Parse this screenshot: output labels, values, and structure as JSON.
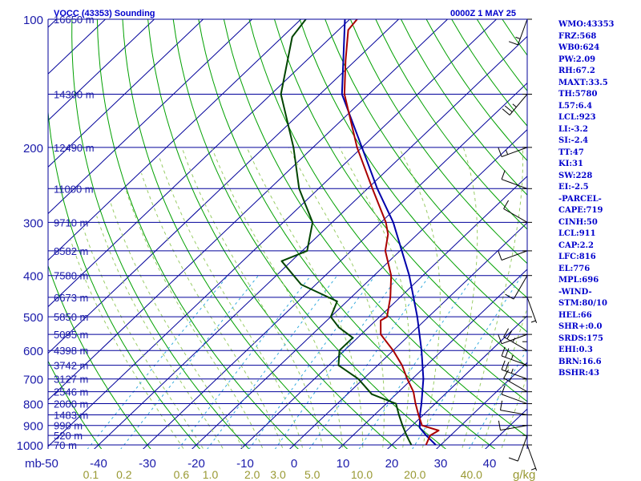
{
  "chart_data": {
    "type": "line",
    "title": "VOCC (43353) Sounding",
    "time_label": "0000Z  1 MAY 25",
    "pressure_unit": "mb",
    "mixing_ratio_unit": "g/kg",
    "pressure_ticks": [
      {
        "label": "100",
        "p": 100
      },
      {
        "label": "200",
        "p": 200
      },
      {
        "label": "300",
        "p": 300
      },
      {
        "label": "400",
        "p": 400
      },
      {
        "label": "500",
        "p": 500
      },
      {
        "label": "600",
        "p": 600
      },
      {
        "label": "700",
        "p": 700
      },
      {
        "label": "800",
        "p": 800
      },
      {
        "label": "900",
        "p": 900
      },
      {
        "label": "1000",
        "p": 1000
      }
    ],
    "height_levels": [
      {
        "label": "16650 m",
        "p": 100
      },
      {
        "label": "14300 m",
        "p": 150
      },
      {
        "label": "12490 m",
        "p": 200
      },
      {
        "label": "11000 m",
        "p": 250
      },
      {
        "label": "9710 m",
        "p": 300
      },
      {
        "label": "8582 m",
        "p": 350
      },
      {
        "label": "7580 m",
        "p": 400
      },
      {
        "label": "6673 m",
        "p": 450
      },
      {
        "label": "5850 m",
        "p": 500
      },
      {
        "label": "5095 m",
        "p": 550
      },
      {
        "label": "4398 m",
        "p": 600
      },
      {
        "label": "3742 m",
        "p": 650
      },
      {
        "label": "3127 m",
        "p": 700
      },
      {
        "label": "2546 m",
        "p": 750
      },
      {
        "label": "2000 m",
        "p": 800
      },
      {
        "label": "1483 m",
        "p": 850
      },
      {
        "label": "990 m",
        "p": 900
      },
      {
        "label": "520 m",
        "p": 950
      },
      {
        "label": "70 m",
        "p": 1000
      }
    ],
    "temperature_ticks": [
      {
        "label": "-50",
        "t": -50
      },
      {
        "label": "-40",
        "t": -40
      },
      {
        "label": "-30",
        "t": -30
      },
      {
        "label": "-20",
        "t": -20
      },
      {
        "label": "-10",
        "t": -10
      },
      {
        "label": "0",
        "t": 0
      },
      {
        "label": "10",
        "t": 10
      },
      {
        "label": "20",
        "t": 20
      },
      {
        "label": "30",
        "t": 30
      },
      {
        "label": "40",
        "t": 40
      }
    ],
    "mixing_ratio_ticks": [
      {
        "label": "0.1",
        "w": 0.1
      },
      {
        "label": "0.2",
        "w": 0.2
      },
      {
        "label": "0.6",
        "w": 0.6
      },
      {
        "label": "1.0",
        "w": 1.0
      },
      {
        "label": "2.0",
        "w": 2.0
      },
      {
        "label": "3.0",
        "w": 3.0
      },
      {
        "label": "5.0",
        "w": 5.0
      },
      {
        "label": "10.0",
        "w": 10.0
      },
      {
        "label": "20.0",
        "w": 20.0
      },
      {
        "label": "40.0",
        "w": 40.0
      }
    ],
    "temperature_profile": [
      {
        "p": 1000,
        "t": 27.0
      },
      {
        "p": 950,
        "t": 25.8
      },
      {
        "p": 925,
        "t": 26.5
      },
      {
        "p": 900,
        "t": 22.0
      },
      {
        "p": 850,
        "t": 19.0
      },
      {
        "p": 800,
        "t": 16.0
      },
      {
        "p": 750,
        "t": 13.0
      },
      {
        "p": 700,
        "t": 9.0
      },
      {
        "p": 650,
        "t": 5.0
      },
      {
        "p": 600,
        "t": 0.0
      },
      {
        "p": 550,
        "t": -6.0
      },
      {
        "p": 510,
        "t": -9.0
      },
      {
        "p": 500,
        "t": -8.5
      },
      {
        "p": 450,
        "t": -12.0
      },
      {
        "p": 400,
        "t": -16.5
      },
      {
        "p": 350,
        "t": -23.0
      },
      {
        "p": 320,
        "t": -26.0
      },
      {
        "p": 300,
        "t": -29.0
      },
      {
        "p": 250,
        "t": -39.0
      },
      {
        "p": 200,
        "t": -51.0
      },
      {
        "p": 150,
        "t": -65.0
      },
      {
        "p": 125,
        "t": -72.0
      },
      {
        "p": 106,
        "t": -78.0
      },
      {
        "p": 100,
        "t": -78.5
      }
    ],
    "dewpoint_profile": [
      {
        "p": 1000,
        "t": 24.0
      },
      {
        "p": 975,
        "t": 22.5
      },
      {
        "p": 950,
        "t": 21.0
      },
      {
        "p": 900,
        "t": 18.0
      },
      {
        "p": 850,
        "t": 15.0
      },
      {
        "p": 800,
        "t": 12.0
      },
      {
        "p": 760,
        "t": 5.0
      },
      {
        "p": 700,
        "t": -1.0
      },
      {
        "p": 650,
        "t": -8.0
      },
      {
        "p": 600,
        "t": -11.0
      },
      {
        "p": 560,
        "t": -11.0
      },
      {
        "p": 530,
        "t": -16.0
      },
      {
        "p": 500,
        "t": -20.0
      },
      {
        "p": 460,
        "t": -22.0
      },
      {
        "p": 420,
        "t": -33.0
      },
      {
        "p": 370,
        "t": -42.0
      },
      {
        "p": 350,
        "t": -39.0
      },
      {
        "p": 300,
        "t": -44.0
      },
      {
        "p": 250,
        "t": -54.0
      },
      {
        "p": 200,
        "t": -64.0
      },
      {
        "p": 150,
        "t": -78.0
      },
      {
        "p": 110,
        "t": -88.0
      },
      {
        "p": 100,
        "t": -89.0
      }
    ],
    "parcel_profile": [
      {
        "p": 1000,
        "t": 29.0
      },
      {
        "p": 950,
        "t": 25.0
      },
      {
        "p": 911,
        "t": 22.0
      },
      {
        "p": 850,
        "t": 19.3
      },
      {
        "p": 800,
        "t": 17.2
      },
      {
        "p": 700,
        "t": 12.3
      },
      {
        "p": 600,
        "t": 5.8
      },
      {
        "p": 500,
        "t": -2.3
      },
      {
        "p": 400,
        "t": -12.8
      },
      {
        "p": 300,
        "t": -27.5
      },
      {
        "p": 250,
        "t": -38.0
      },
      {
        "p": 200,
        "t": -50.0
      },
      {
        "p": 150,
        "t": -65.5
      },
      {
        "p": 100,
        "t": -81.0
      }
    ],
    "wind_barbs": [
      {
        "p": 1000,
        "dir": 160,
        "spd": 5
      },
      {
        "p": 950,
        "dir": 200,
        "spd": 10
      },
      {
        "p": 900,
        "dir": 260,
        "spd": 10
      },
      {
        "p": 850,
        "dir": 280,
        "spd": 10
      },
      {
        "p": 800,
        "dir": 290,
        "spd": 10
      },
      {
        "p": 750,
        "dir": 300,
        "spd": 15
      },
      {
        "p": 700,
        "dir": 290,
        "spd": 25
      },
      {
        "p": 650,
        "dir": 290,
        "spd": 25
      },
      {
        "p": 600,
        "dir": 300,
        "spd": 25
      },
      {
        "p": 550,
        "dir": 250,
        "spd": 10
      },
      {
        "p": 500,
        "dir": 180,
        "spd": 5
      },
      {
        "p": 450,
        "dir": 160,
        "spd": 5
      },
      {
        "p": 400,
        "dir": 210,
        "spd": 10
      },
      {
        "p": 350,
        "dir": 250,
        "spd": 10
      },
      {
        "p": 300,
        "dir": 300,
        "spd": 10
      },
      {
        "p": 250,
        "dir": 290,
        "spd": 10
      },
      {
        "p": 200,
        "dir": 250,
        "spd": 15
      },
      {
        "p": 150,
        "dir": 220,
        "spd": 25
      },
      {
        "p": 100,
        "dir": 200,
        "spd": 15
      }
    ],
    "colors": {
      "background": "#ffffff",
      "isobar": "#00009a",
      "isotherm": "#00009a",
      "dry_adiabat": "#00a000",
      "moist_adiabat": "#99cc66",
      "mixing_ratio": "#666666",
      "dewpoint_mixing": "#33aadd",
      "temperature": "#aa0000",
      "dewpoint": "#004400",
      "parcel": "#0000aa",
      "axis_text": "#1a1aaa",
      "mixing_ratio_text": "#999933",
      "wind": "#000000"
    }
  },
  "indices": [
    "WMO:43353",
    "FRZ:568",
    "WB0:624",
    "PW:2.09",
    "RH:67.2",
    "MAXT:33.5",
    "TH:5780",
    "L57:6.4",
    "LCL:923",
    "LI:-3.2",
    "SI:-2.4",
    "TT:47",
    "KI:31",
    "SW:228",
    "EI:-2.5",
    "-PARCEL-",
    "CAPE:719",
    "CINH:50",
    "LCL:911",
    "CAP:2.2",
    "LFC:816",
    "EL:776",
    "MPL:696",
    "-WIND-",
    "STM:80/10",
    "HEL:66",
    "SHR+:0.0",
    "SRDS:175",
    "EHI:0.3",
    "BRN:16.6",
    "BSHR:43"
  ]
}
